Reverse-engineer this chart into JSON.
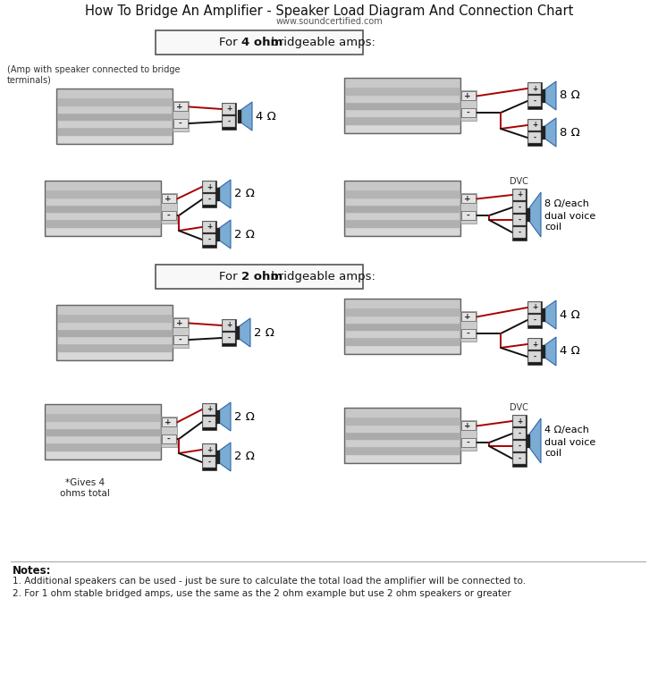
{
  "title": "How To Bridge An Amplifier - Speaker Load Diagram And Connection Chart",
  "subtitle": "www.soundcertified.com",
  "bg_color": "#ffffff",
  "wire_red": "#aa0000",
  "wire_black": "#111111",
  "notes_title": "Notes:",
  "notes": [
    "1. Additional speakers can be used - just be sure to calculate the total load the amplifier will be connected to.",
    "2. For 1 ohm stable bridged amps, use the same as the 2 ohm example but use 2 ohm speakers or greater"
  ],
  "section1_label_plain": "For ",
  "section1_label_bold": "4 ohm",
  "section1_label_rest": " bridgeable amps:",
  "section2_label_plain": "For ",
  "section2_label_bold": "2 ohm",
  "section2_label_rest": " bridgeable amps:"
}
